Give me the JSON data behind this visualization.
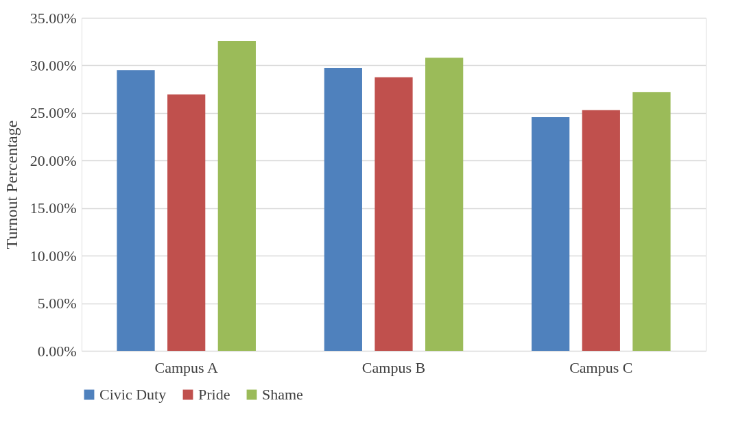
{
  "chart_data": {
    "type": "bar",
    "ylabel": "Turnout Percentage",
    "categories": [
      "Campus A",
      "Campus B",
      "Campus C"
    ],
    "series": [
      {
        "name": "Civic Duty",
        "color": "#4f81bd",
        "values": [
          29.5,
          29.75,
          24.55
        ]
      },
      {
        "name": "Pride",
        "color": "#c0504d",
        "values": [
          26.95,
          28.75,
          25.3
        ]
      },
      {
        "name": "Shame",
        "color": "#9bbb59",
        "values": [
          32.55,
          30.8,
          27.2
        ]
      }
    ],
    "ylim": [
      0,
      35
    ],
    "yticks": [
      {
        "value": 0,
        "label": "0.00%"
      },
      {
        "value": 5,
        "label": "5.00%"
      },
      {
        "value": 10,
        "label": "10.00%"
      },
      {
        "value": 15,
        "label": "15.00%"
      },
      {
        "value": 20,
        "label": "20.00%"
      },
      {
        "value": 25,
        "label": "25.00%"
      },
      {
        "value": 30,
        "label": "30.00%"
      },
      {
        "value": 35,
        "label": "35.00%"
      }
    ],
    "grid": "y",
    "legend": "bottom"
  }
}
